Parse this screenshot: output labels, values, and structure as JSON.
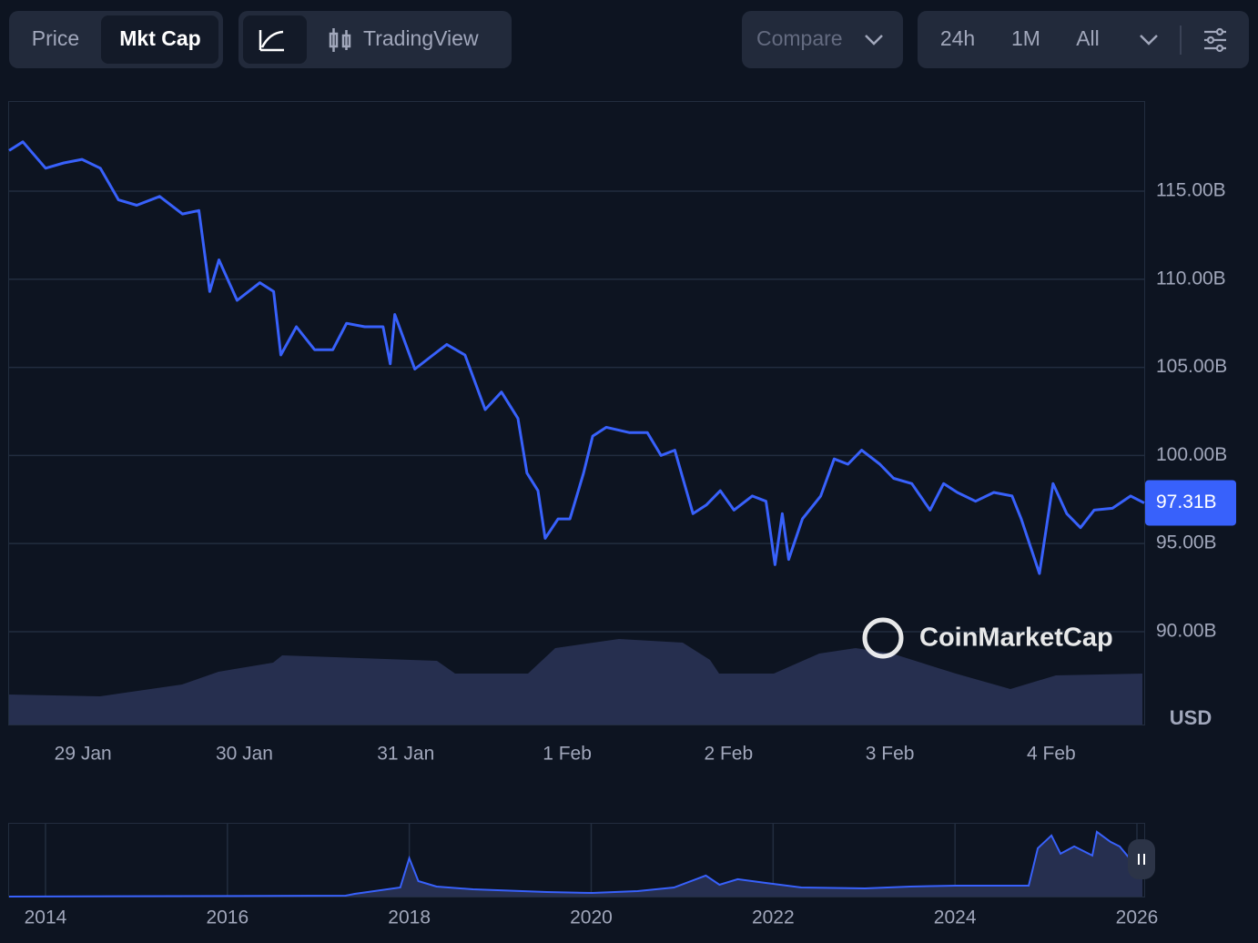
{
  "toolbar": {
    "price": "Price",
    "mkt_cap": "Mkt Cap",
    "tradingview": "TradingView",
    "compare": "Compare",
    "range_24h": "24h",
    "range_1m": "1M",
    "range_all": "All"
  },
  "watermark": "CoinMarketCap",
  "chart_data": [
    {
      "type": "line",
      "ylabel": "USD",
      "color": "#3861fb",
      "grid": true,
      "x": [
        -0.458,
        -0.373,
        -0.232,
        -0.119,
        -0.006,
        0.107,
        0.22,
        0.333,
        0.475,
        0.616,
        0.718,
        0.785,
        0.842,
        0.955,
        1.096,
        1.181,
        1.226,
        1.322,
        1.435,
        1.548,
        1.633,
        1.746,
        1.859,
        1.904,
        1.932,
        2.056,
        2.169,
        2.254,
        2.367,
        2.492,
        2.593,
        2.695,
        2.751,
        2.819,
        2.864,
        2.944,
        3.017,
        3.102,
        3.158,
        3.243,
        3.384,
        3.497,
        3.582,
        3.667,
        3.78,
        3.864,
        3.949,
        4.034,
        4.147,
        4.232,
        4.288,
        4.333,
        4.373,
        4.458,
        4.571,
        4.655,
        4.74,
        4.825,
        4.938,
        5.023,
        5.136,
        5.249,
        5.333,
        5.418,
        5.531,
        5.644,
        5.757,
        5.814,
        5.927,
        6.011,
        6.096,
        6.181,
        6.266,
        6.379,
        6.492,
        6.576
      ],
      "series": [
        {
          "values": [
            117.3,
            117.8,
            116.3,
            116.6,
            116.8,
            116.3,
            114.5,
            114.2,
            114.7,
            113.7,
            113.9,
            109.3,
            111.1,
            108.8,
            109.8,
            109.3,
            105.7,
            107.3,
            106.0,
            106.0,
            107.5,
            107.3,
            107.3,
            105.2,
            108.0,
            104.9,
            105.7,
            106.3,
            105.7,
            102.6,
            103.6,
            102.1,
            99.0,
            98.0,
            95.3,
            96.4,
            96.4,
            99.0,
            101.1,
            101.6,
            101.3,
            101.3,
            100.0,
            100.3,
            96.7,
            97.2,
            98.0,
            96.9,
            97.7,
            97.4,
            93.8,
            96.7,
            94.1,
            96.4,
            97.7,
            99.8,
            99.5,
            100.3,
            99.5,
            98.7,
            98.4,
            96.9,
            98.4,
            97.9,
            97.4,
            97.9,
            97.7,
            96.4,
            93.3,
            98.4,
            96.7,
            95.9,
            96.9,
            97.0,
            97.7,
            97.3
          ]
        }
      ],
      "last_value": 97.31,
      "last_label": "97.31B",
      "xlim": [
        -0.458,
        6.576
      ],
      "xticks": [
        {
          "value": 0,
          "label": "29 Jan"
        },
        {
          "value": 1,
          "label": "30 Jan"
        },
        {
          "value": 2,
          "label": "31 Jan"
        },
        {
          "value": 3,
          "label": "1 Feb"
        },
        {
          "value": 4,
          "label": "2 Feb"
        },
        {
          "value": 5,
          "label": "3 Feb"
        },
        {
          "value": 6,
          "label": "4 Feb"
        }
      ],
      "ylim": [
        84.73,
        120.06
      ],
      "yticks": [
        {
          "value": 90,
          "label": "90.00B"
        },
        {
          "value": 95,
          "label": "95.00B"
        },
        {
          "value": 100,
          "label": "100.00B"
        },
        {
          "value": 105,
          "label": "105.00B"
        },
        {
          "value": 110,
          "label": "110.00B"
        },
        {
          "value": 115,
          "label": "115.00B"
        }
      ]
    },
    {
      "type": "area",
      "color": "#3861fb",
      "x": [
        2013.6,
        2017.3,
        2017.4,
        2017.9,
        2018.0,
        2018.1,
        2018.3,
        2018.7,
        2019.51,
        2020.01,
        2020.51,
        2020.91,
        2021.26,
        2021.41,
        2021.61,
        2021.91,
        2022.31,
        2023.01,
        2023.51,
        2024.01,
        2024.81,
        2024.91,
        2025.06,
        2025.16,
        2025.31,
        2025.51,
        2025.56,
        2025.71,
        2025.81,
        2025.91,
        2025.99,
        2026.06
      ],
      "values": [
        0,
        2.4,
        7.3,
        24.3,
        102.1,
        41.3,
        26.7,
        19.4,
        12.2,
        9.7,
        14.6,
        24.3,
        55.9,
        31.6,
        46.2,
        36.5,
        24.3,
        21.9,
        26.7,
        29.2,
        29.2,
        128.8,
        162.8,
        114.2,
        133.7,
        109.4,
        172.5,
        145.8,
        133.7,
        104.5,
        121.5,
        97.2
      ],
      "xlim": [
        2013.6,
        2026.08
      ],
      "ylim": [
        0,
        194
      ],
      "xticks": [
        2014,
        2016,
        2018,
        2020,
        2022,
        2024,
        2026
      ]
    }
  ]
}
